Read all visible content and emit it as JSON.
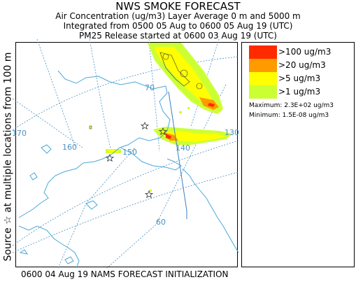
{
  "title": "NWS SMOKE FORECAST",
  "subtitle_lines": [
    "Air Concentration (ug/m3) Layer Average    0 m and  5000 m",
    "Integrated from 0500 05 Aug to 0600 05 Aug 19 (UTC)",
    "PM25 Release started at 0600 03 Aug 19 (UTC)"
  ],
  "side_label": "Source ☆ at multiple locations   from   100 m",
  "footer": "0600 04 Aug 19 NAMS FORECAST INITIALIZATION",
  "legend": {
    "items": [
      {
        "label": ">100 ug/m3",
        "color": "#ff2a00"
      },
      {
        "label": ">20 ug/m3",
        "color": "#ff9a00"
      },
      {
        "label": ">5 ug/m3",
        "color": "#ffff00"
      },
      {
        "label": ">1 ug/m3",
        "color": "#ccff33"
      }
    ],
    "maximum": "Maximum: 2.3E+02 ug/m3",
    "minimum": "Minimum: 1.5E-08 ug/m3"
  },
  "map": {
    "grid_labels": [
      "70",
      "170",
      "160",
      "150",
      "140",
      "130",
      "60"
    ],
    "coastline_color": "#4aa8d8",
    "grid_color": "#4a90c2",
    "border_color": "#3a7fc0",
    "source_marker": "star-icon"
  }
}
